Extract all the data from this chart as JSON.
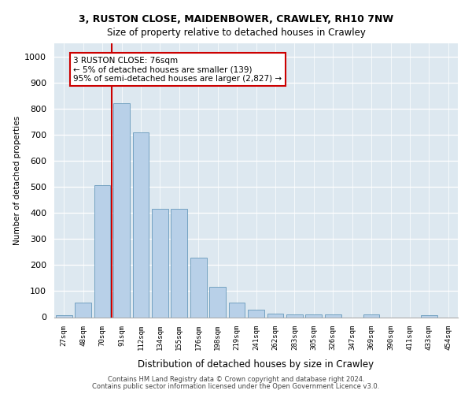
{
  "title_line1": "3, RUSTON CLOSE, MAIDENBOWER, CRAWLEY, RH10 7NW",
  "title_line2": "Size of property relative to detached houses in Crawley",
  "xlabel": "Distribution of detached houses by size in Crawley",
  "ylabel": "Number of detached properties",
  "categories": [
    "27sqm",
    "48sqm",
    "70sqm",
    "91sqm",
    "112sqm",
    "134sqm",
    "155sqm",
    "176sqm",
    "198sqm",
    "219sqm",
    "241sqm",
    "262sqm",
    "283sqm",
    "305sqm",
    "326sqm",
    "347sqm",
    "369sqm",
    "390sqm",
    "411sqm",
    "433sqm",
    "454sqm"
  ],
  "values": [
    8,
    57,
    505,
    820,
    710,
    415,
    415,
    228,
    115,
    55,
    30,
    15,
    12,
    12,
    10,
    0,
    10,
    0,
    0,
    8,
    0
  ],
  "bar_color": "#b8d0e8",
  "bar_edge_color": "#6699bb",
  "vline_color": "#cc0000",
  "vline_x_index": 2,
  "annotation_text": "3 RUSTON CLOSE: 76sqm\n← 5% of detached houses are smaller (139)\n95% of semi-detached houses are larger (2,827) →",
  "annotation_box_color": "#ffffff",
  "annotation_box_edge": "#cc0000",
  "ylim": [
    0,
    1050
  ],
  "yticks": [
    0,
    100,
    200,
    300,
    400,
    500,
    600,
    700,
    800,
    900,
    1000
  ],
  "bg_color": "#dde8f0",
  "footer_line1": "Contains HM Land Registry data © Crown copyright and database right 2024.",
  "footer_line2": "Contains public sector information licensed under the Open Government Licence v3.0."
}
